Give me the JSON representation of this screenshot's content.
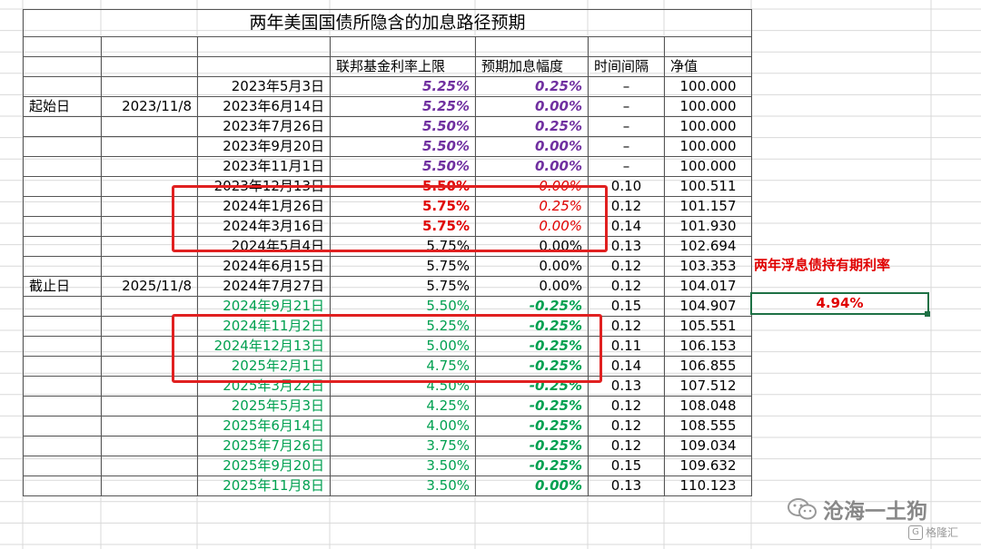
{
  "title": "两年美国国债所隐含的加息路径预期",
  "headers": {
    "rate": "联邦基金利率上限",
    "hike": "预期加息幅度",
    "interval": "时间间隔",
    "nav": "净值"
  },
  "labels": {
    "start": "起始日",
    "start_date": "2023/11/8",
    "end": "截止日",
    "end_date": "2025/11/8"
  },
  "rows": [
    {
      "date": "2023年5月3日",
      "rate": "5.25%",
      "hike": "0.25%",
      "interval": "–",
      "nav": "100.000",
      "style": "purple"
    },
    {
      "date": "2023年6月14日",
      "rate": "5.25%",
      "hike": "0.00%",
      "interval": "–",
      "nav": "100.000",
      "style": "purple"
    },
    {
      "date": "2023年7月26日",
      "rate": "5.50%",
      "hike": "0.25%",
      "interval": "–",
      "nav": "100.000",
      "style": "purple"
    },
    {
      "date": "2023年9月20日",
      "rate": "5.50%",
      "hike": "0.00%",
      "interval": "–",
      "nav": "100.000",
      "style": "purple"
    },
    {
      "date": "2023年11月1日",
      "rate": "5.50%",
      "hike": "0.00%",
      "interval": "–",
      "nav": "100.000",
      "style": "purple"
    },
    {
      "date": "2023年12月13日",
      "rate": "5.50%",
      "hike": "0.00%",
      "interval": "0.10",
      "nav": "100.511",
      "style": "red"
    },
    {
      "date": "2024年1月26日",
      "rate": "5.75%",
      "hike": "0.25%",
      "interval": "0.12",
      "nav": "101.157",
      "style": "red"
    },
    {
      "date": "2024年3月16日",
      "rate": "5.75%",
      "hike": "0.00%",
      "interval": "0.14",
      "nav": "101.930",
      "style": "red"
    },
    {
      "date": "2024年5月4日",
      "rate": "5.75%",
      "hike": "0.00%",
      "interval": "0.13",
      "nav": "102.694",
      "style": "black"
    },
    {
      "date": "2024年6月15日",
      "rate": "5.75%",
      "hike": "0.00%",
      "interval": "0.12",
      "nav": "103.353",
      "style": "black"
    },
    {
      "date": "2024年7月27日",
      "rate": "5.75%",
      "hike": "0.00%",
      "interval": "0.12",
      "nav": "104.017",
      "style": "black"
    },
    {
      "date": "2024年9月21日",
      "rate": "5.50%",
      "hike": "-0.25%",
      "interval": "0.15",
      "nav": "104.907",
      "style": "green"
    },
    {
      "date": "2024年11月2日",
      "rate": "5.25%",
      "hike": "-0.25%",
      "interval": "0.12",
      "nav": "105.551",
      "style": "green"
    },
    {
      "date": "2024年12月13日",
      "rate": "5.00%",
      "hike": "-0.25%",
      "interval": "0.11",
      "nav": "106.153",
      "style": "green"
    },
    {
      "date": "2025年2月1日",
      "rate": "4.75%",
      "hike": "-0.25%",
      "interval": "0.14",
      "nav": "106.855",
      "style": "green"
    },
    {
      "date": "2025年3月22日",
      "rate": "4.50%",
      "hike": "-0.25%",
      "interval": "0.13",
      "nav": "107.512",
      "style": "green"
    },
    {
      "date": "2025年5月3日",
      "rate": "4.25%",
      "hike": "-0.25%",
      "interval": "0.12",
      "nav": "108.048",
      "style": "green"
    },
    {
      "date": "2025年6月14日",
      "rate": "4.00%",
      "hike": "-0.25%",
      "interval": "0.12",
      "nav": "108.555",
      "style": "green"
    },
    {
      "date": "2025年7月26日",
      "rate": "3.75%",
      "hike": "-0.25%",
      "interval": "0.12",
      "nav": "109.034",
      "style": "green"
    },
    {
      "date": "2025年9月20日",
      "rate": "3.50%",
      "hike": "-0.25%",
      "interval": "0.15",
      "nav": "109.632",
      "style": "green"
    },
    {
      "date": "2025年11月8日",
      "rate": "3.50%",
      "hike": "0.00%",
      "interval": "0.13",
      "nav": "110.123",
      "style": "green"
    }
  ],
  "side": {
    "title": "两年浮息债持有期利率",
    "value": "4.94%"
  },
  "watermark": {
    "text": "沧海一土狗",
    "logo": "格隆汇"
  },
  "colors": {
    "purple": "#7030a0",
    "red": "#e00000",
    "green": "#00a050",
    "box": "#e02020"
  }
}
